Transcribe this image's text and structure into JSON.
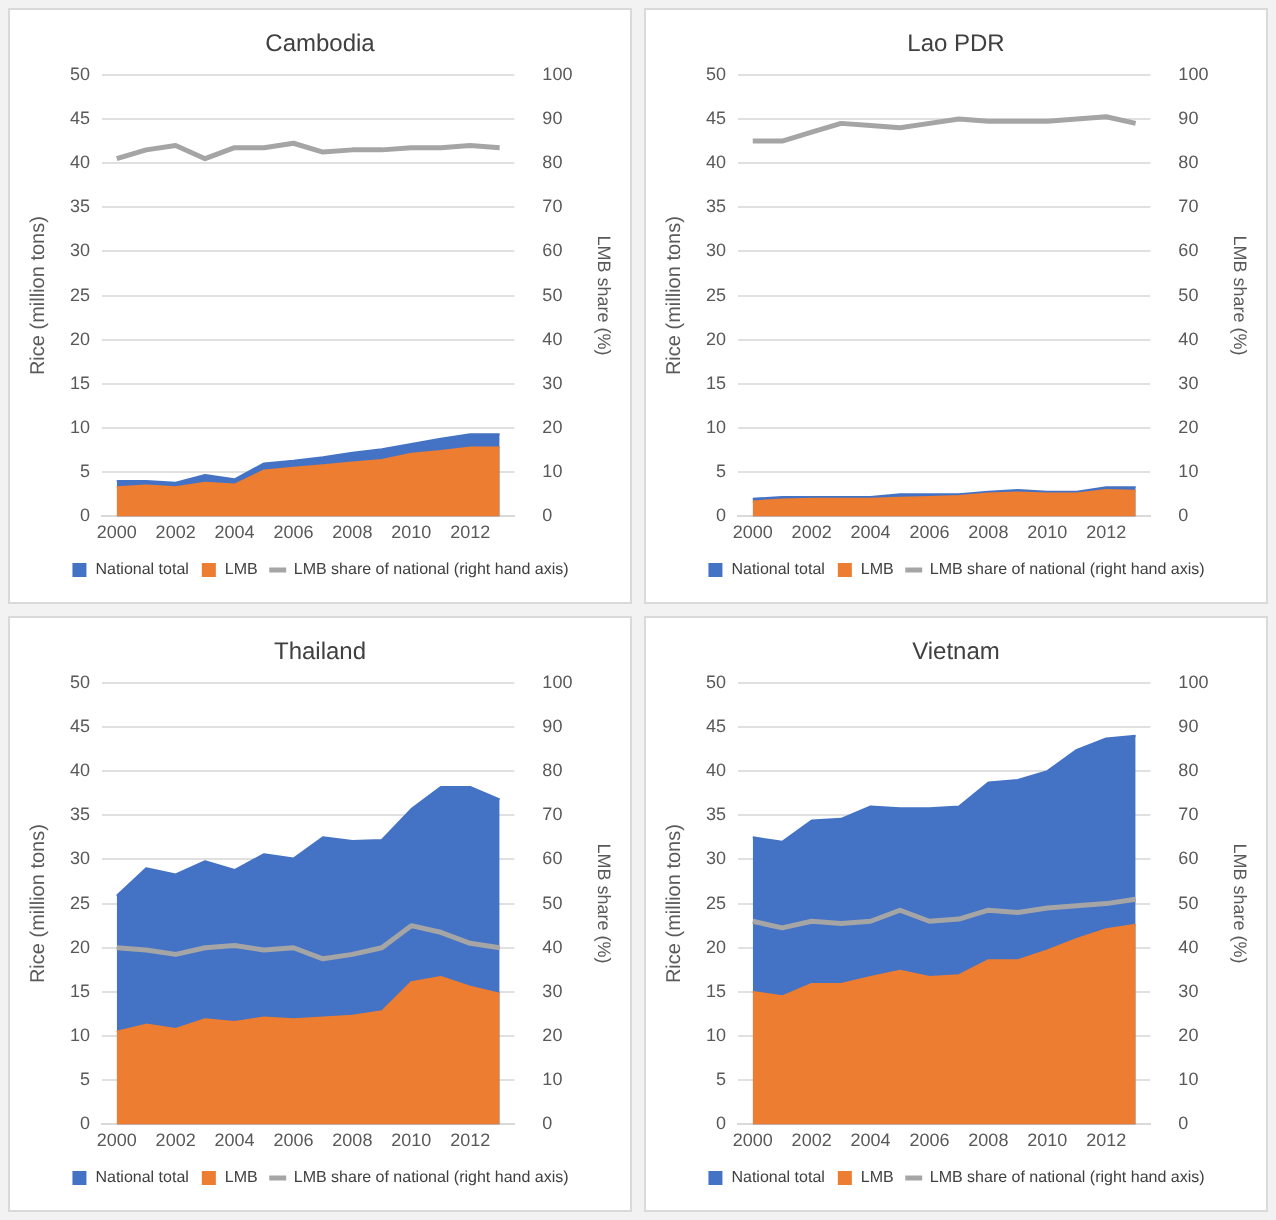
{
  "chart_data": [
    {
      "type": "area",
      "title": "Cambodia",
      "ylabel": "Rice (million tons)",
      "y2label": "LMB share (%)",
      "categories": [
        "2000",
        null,
        "2002",
        null,
        "2004",
        null,
        "2006",
        null,
        "2008",
        null,
        "2010",
        null,
        "2012",
        null
      ],
      "ylim": [
        0,
        50
      ],
      "yticks": [
        0,
        5,
        10,
        15,
        20,
        25,
        30,
        35,
        40,
        45,
        50
      ],
      "y2lim": [
        0,
        100
      ],
      "y2ticks": [
        0,
        10,
        20,
        30,
        40,
        50,
        60,
        70,
        80,
        90,
        100
      ],
      "grid": "y",
      "legend": "bottom",
      "series": [
        {
          "name": "National total",
          "color": "#4472c4",
          "values": [
            4.0,
            4.0,
            3.8,
            4.7,
            4.2,
            6.0,
            6.3,
            6.7,
            7.2,
            7.6,
            8.2,
            8.8,
            9.3,
            9.3
          ]
        },
        {
          "name": "LMB",
          "color": "#ed7d31",
          "values": [
            3.3,
            3.5,
            3.3,
            3.8,
            3.6,
            5.2,
            5.5,
            5.8,
            6.1,
            6.4,
            7.1,
            7.4,
            7.8,
            7.8
          ]
        },
        {
          "name": "LMB share of national (right hand axis)",
          "type": "line",
          "axis": "y2",
          "color": "#a5a5a5",
          "values": [
            81,
            83,
            84,
            81,
            83.5,
            83.5,
            84.5,
            82.5,
            83,
            83,
            83.5,
            83.5,
            84,
            83.5
          ]
        }
      ]
    },
    {
      "type": "area",
      "title": "Lao PDR",
      "ylabel": "Rice (million tons)",
      "y2label": "LMB share (%)",
      "categories": [
        "2000",
        null,
        "2002",
        null,
        "2004",
        null,
        "2006",
        null,
        "2008",
        null,
        "2010",
        null,
        "2012",
        null
      ],
      "ylim": [
        0,
        50
      ],
      "yticks": [
        0,
        5,
        10,
        15,
        20,
        25,
        30,
        35,
        40,
        45,
        50
      ],
      "y2lim": [
        0,
        100
      ],
      "y2ticks": [
        0,
        10,
        20,
        30,
        40,
        50,
        60,
        70,
        80,
        90,
        100
      ],
      "grid": "y",
      "legend": "bottom",
      "series": [
        {
          "name": "National total",
          "color": "#4472c4",
          "values": [
            2.0,
            2.2,
            2.2,
            2.2,
            2.2,
            2.5,
            2.5,
            2.5,
            2.8,
            3.0,
            2.8,
            2.8,
            3.3,
            3.3
          ]
        },
        {
          "name": "LMB",
          "color": "#ed7d31",
          "values": [
            1.7,
            1.9,
            2.0,
            2.0,
            2.0,
            2.1,
            2.2,
            2.3,
            2.6,
            2.7,
            2.6,
            2.6,
            3.0,
            2.9
          ]
        },
        {
          "name": "LMB share of national (right hand axis)",
          "type": "line",
          "axis": "y2",
          "color": "#a5a5a5",
          "values": [
            85,
            85,
            87,
            89,
            88.5,
            88,
            89,
            90,
            89.5,
            89.5,
            89.5,
            90,
            90.5,
            89
          ]
        }
      ]
    },
    {
      "type": "area",
      "title": "Thailand",
      "ylabel": "Rice (million tons)",
      "y2label": "LMB share (%)",
      "categories": [
        "2000",
        null,
        "2002",
        null,
        "2004",
        null,
        "2006",
        null,
        "2008",
        null,
        "2010",
        null,
        "2012",
        null
      ],
      "ylim": [
        0,
        50
      ],
      "yticks": [
        0,
        5,
        10,
        15,
        20,
        25,
        30,
        35,
        40,
        45,
        50
      ],
      "y2lim": [
        0,
        100
      ],
      "y2ticks": [
        0,
        10,
        20,
        30,
        40,
        50,
        60,
        70,
        80,
        90,
        100
      ],
      "grid": "y",
      "legend": "bottom",
      "series": [
        {
          "name": "National total",
          "color": "#4472c4",
          "values": [
            25.9,
            29.0,
            28.3,
            29.8,
            28.8,
            30.6,
            30.1,
            32.5,
            32.1,
            32.2,
            35.7,
            38.2,
            38.2,
            36.8
          ]
        },
        {
          "name": "LMB",
          "color": "#ed7d31",
          "values": [
            10.5,
            11.3,
            10.8,
            11.9,
            11.6,
            12.1,
            11.9,
            12.1,
            12.3,
            12.8,
            16.1,
            16.7,
            15.6,
            14.8
          ]
        },
        {
          "name": "LMB share of national (right hand axis)",
          "type": "line",
          "axis": "y2",
          "color": "#a5a5a5",
          "values": [
            40,
            39.5,
            38.5,
            40,
            40.5,
            39.5,
            40,
            37.5,
            38.5,
            40,
            45,
            43.5,
            41,
            40
          ]
        }
      ]
    },
    {
      "type": "area",
      "title": "Vietnam",
      "ylabel": "Rice (million tons)",
      "y2label": "LMB share (%)",
      "categories": [
        "2000",
        null,
        "2002",
        null,
        "2004",
        null,
        "2006",
        null,
        "2008",
        null,
        "2010",
        null,
        "2012",
        null
      ],
      "ylim": [
        0,
        50
      ],
      "yticks": [
        0,
        5,
        10,
        15,
        20,
        25,
        30,
        35,
        40,
        45,
        50
      ],
      "y2lim": [
        0,
        100
      ],
      "y2ticks": [
        0,
        10,
        20,
        30,
        40,
        50,
        60,
        70,
        80,
        90,
        100
      ],
      "grid": "y",
      "legend": "bottom",
      "series": [
        {
          "name": "National total",
          "color": "#4472c4",
          "values": [
            32.5,
            32.0,
            34.4,
            34.6,
            36.0,
            35.8,
            35.8,
            36.0,
            38.7,
            39.0,
            40.0,
            42.4,
            43.7,
            44.0
          ]
        },
        {
          "name": "LMB",
          "color": "#ed7d31",
          "values": [
            15.0,
            14.5,
            15.9,
            15.9,
            16.7,
            17.4,
            16.7,
            16.9,
            18.6,
            18.6,
            19.7,
            21.0,
            22.1,
            22.6
          ]
        },
        {
          "name": "LMB share of national (right hand axis)",
          "type": "line",
          "axis": "y2",
          "color": "#a5a5a5",
          "values": [
            46,
            44.5,
            46,
            45.5,
            46,
            48.5,
            46,
            46.5,
            48.5,
            48,
            49,
            49.5,
            50,
            51
          ]
        }
      ]
    }
  ]
}
